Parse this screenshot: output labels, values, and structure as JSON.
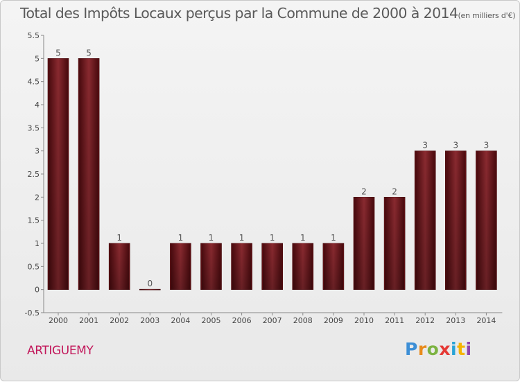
{
  "chart_data": {
    "type": "bar",
    "title": "Total des Impôts Locaux perçus par la Commune de 2000 à 2014",
    "subtitle": "(en milliers d'€)",
    "categories": [
      "2000",
      "2001",
      "2002",
      "2003",
      "2004",
      "2005",
      "2006",
      "2007",
      "2008",
      "2009",
      "2010",
      "2011",
      "2012",
      "2013",
      "2014"
    ],
    "values": [
      5,
      5,
      1,
      0,
      1,
      1,
      1,
      1,
      1,
      1,
      2,
      2,
      3,
      3,
      3
    ],
    "data_labels": [
      "5",
      "5",
      "1",
      "0",
      "1",
      "1",
      "1",
      "1",
      "1",
      "1",
      "2",
      "2",
      "3",
      "3",
      "3"
    ],
    "yticks": [
      "-0.5",
      "0",
      "0.5",
      "1",
      "1.5",
      "2",
      "2.5",
      "3",
      "3.5",
      "4",
      "4.5",
      "5",
      "5.5"
    ],
    "ylim": [
      -0.5,
      5.5
    ],
    "xlabel": "",
    "ylabel": "",
    "grid": false,
    "bar_color": "#7b1f24"
  },
  "commune": "ARTIGUEMY",
  "logo": {
    "p": "P",
    "r": "r",
    "o": "o",
    "x": "x",
    "i": "i",
    "t": "t",
    "i2": "i"
  }
}
